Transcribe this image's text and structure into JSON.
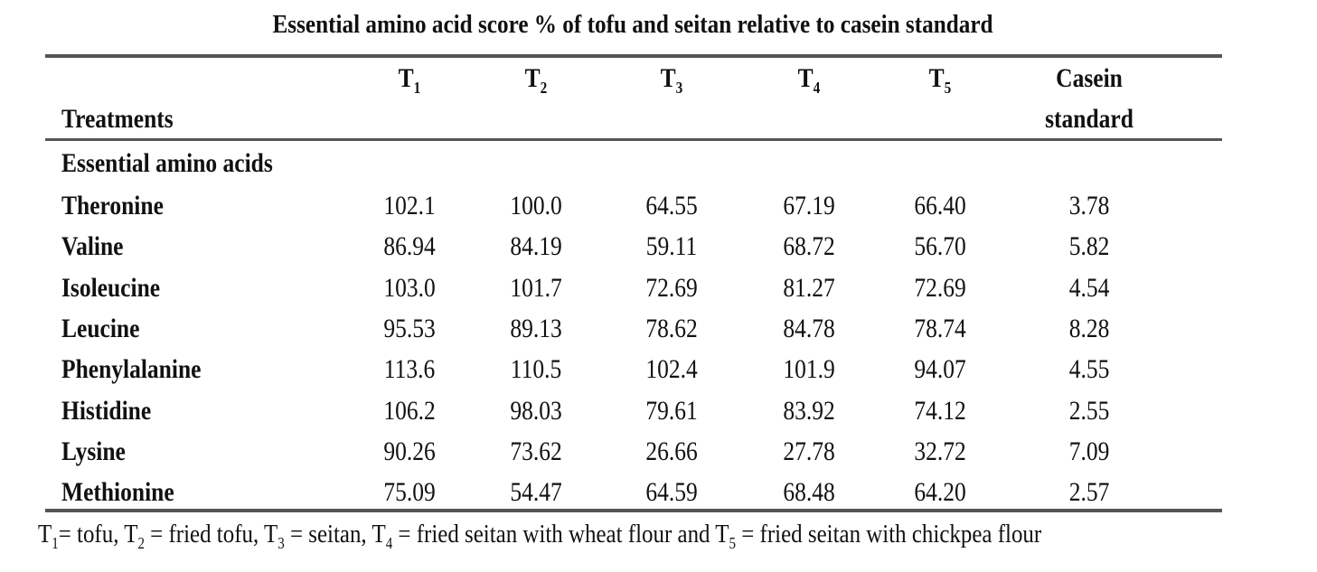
{
  "title": "Essential amino acid score % of tofu and seitan relative to casein standard",
  "header": {
    "row_label": "Treatments",
    "columns": [
      {
        "base": "T",
        "sub": "1"
      },
      {
        "base": "T",
        "sub": "2"
      },
      {
        "base": "T",
        "sub": "3"
      },
      {
        "base": "T",
        "sub": "4"
      },
      {
        "base": "T",
        "sub": "5"
      }
    ],
    "casein_line1": "Casein",
    "casein_line2": "standard"
  },
  "section_label": "Essential amino acids",
  "rows": [
    {
      "name": "Theronine",
      "values": [
        "102.1",
        "100.0",
        "64.55",
        "67.19",
        "66.40",
        "3.78"
      ]
    },
    {
      "name": "Valine",
      "values": [
        "86.94",
        "84.19",
        "59.11",
        "68.72",
        "56.70",
        "5.82"
      ]
    },
    {
      "name": "Isoleucine",
      "values": [
        "103.0",
        "101.7",
        "72.69",
        "81.27",
        "72.69",
        "4.54"
      ]
    },
    {
      "name": "Leucine",
      "values": [
        "95.53",
        "89.13",
        "78.62",
        "84.78",
        "78.74",
        "8.28"
      ]
    },
    {
      "name": "Phenylalanine",
      "values": [
        "113.6",
        "110.5",
        "102.4",
        "101.9",
        "94.07",
        "4.55"
      ]
    },
    {
      "name": "Histidine",
      "values": [
        "106.2",
        "98.03",
        "79.61",
        "83.92",
        "74.12",
        "2.55"
      ]
    },
    {
      "name": "Lysine",
      "values": [
        "90.26",
        "73.62",
        "26.66",
        "27.78",
        "32.72",
        "7.09"
      ]
    },
    {
      "name": "Methionine",
      "values": [
        "75.09",
        "54.47",
        "64.59",
        "68.48",
        "64.20",
        "2.57"
      ]
    }
  ],
  "footnote": [
    {
      "base": "T",
      "sub": "1",
      "text": "= tofu, "
    },
    {
      "base": "T",
      "sub": "2",
      "text": " = fried tofu, "
    },
    {
      "base": "T",
      "sub": "3",
      "text": " = seitan, "
    },
    {
      "base": "T",
      "sub": "4",
      "text": " = fried seitan with wheat flour and "
    },
    {
      "base": "T",
      "sub": "5",
      "text": " = fried seitan with chickpea flour"
    }
  ]
}
